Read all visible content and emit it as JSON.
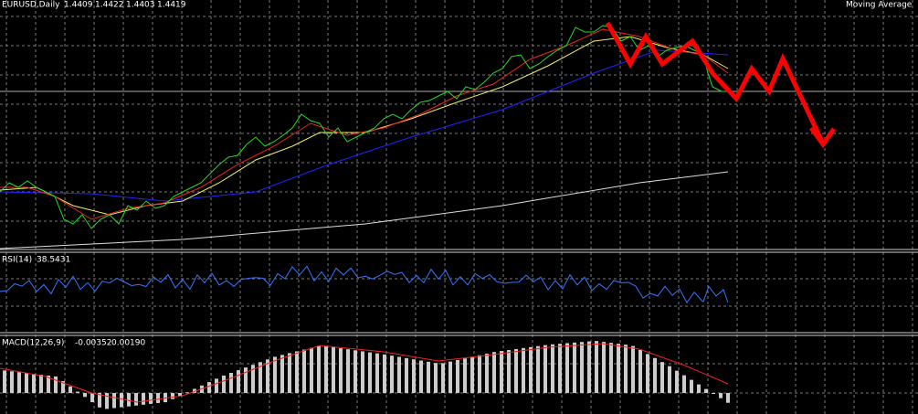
{
  "main_panel": {
    "symbol": "EURUSD,Daily",
    "ohlc": [
      "1.4409",
      "1.4422",
      "1.4403",
      "1.4419"
    ],
    "indicator": "Moving Average"
  },
  "rsi_panel": {
    "name": "RSI(14)",
    "value": "38.5431"
  },
  "macd_panel": {
    "name": "MACD(12,26,9)",
    "values": [
      "-0.00352",
      "0.00190"
    ]
  }
}
